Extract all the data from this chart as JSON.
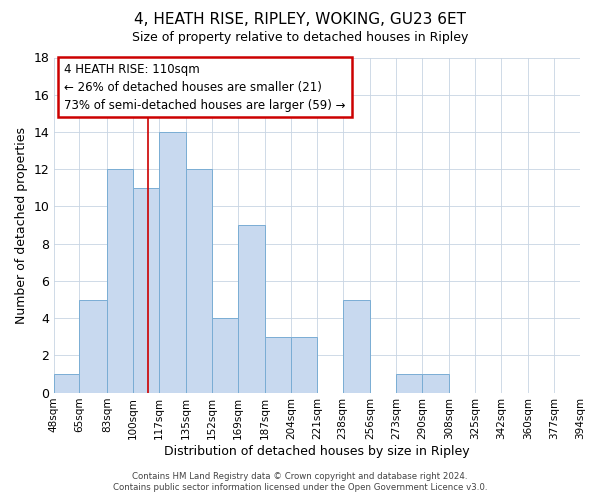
{
  "title": "4, HEATH RISE, RIPLEY, WOKING, GU23 6ET",
  "subtitle": "Size of property relative to detached houses in Ripley",
  "xlabel": "Distribution of detached houses by size in Ripley",
  "ylabel": "Number of detached properties",
  "bar_color": "#c8d9ef",
  "bar_edge_color": "#7aadd4",
  "grid_color": "#c8d4e3",
  "background_color": "#ffffff",
  "bin_labels": [
    "48sqm",
    "65sqm",
    "83sqm",
    "100sqm",
    "117sqm",
    "135sqm",
    "152sqm",
    "169sqm",
    "187sqm",
    "204sqm",
    "221sqm",
    "238sqm",
    "256sqm",
    "273sqm",
    "290sqm",
    "308sqm",
    "325sqm",
    "342sqm",
    "360sqm",
    "377sqm",
    "394sqm"
  ],
  "bin_edges": [
    48,
    65,
    83,
    100,
    117,
    135,
    152,
    169,
    187,
    204,
    221,
    238,
    256,
    273,
    290,
    308,
    325,
    342,
    360,
    377,
    394
  ],
  "counts": [
    1,
    5,
    12,
    11,
    14,
    12,
    4,
    9,
    3,
    3,
    0,
    5,
    0,
    1,
    1,
    0,
    0,
    0,
    0,
    0
  ],
  "ylim": [
    0,
    18
  ],
  "yticks": [
    0,
    2,
    4,
    6,
    8,
    10,
    12,
    14,
    16,
    18
  ],
  "annotation_line1": "4 HEATH RISE: 110sqm",
  "annotation_line2": "← 26% of detached houses are smaller (21)",
  "annotation_line3": "73% of semi-detached houses are larger (59) →",
  "annotation_box_color": "#ffffff",
  "annotation_box_edge_color": "#cc0000",
  "property_line_color": "#cc0000",
  "property_line_x": 110,
  "footer_line1": "Contains HM Land Registry data © Crown copyright and database right 2024.",
  "footer_line2": "Contains public sector information licensed under the Open Government Licence v3.0."
}
